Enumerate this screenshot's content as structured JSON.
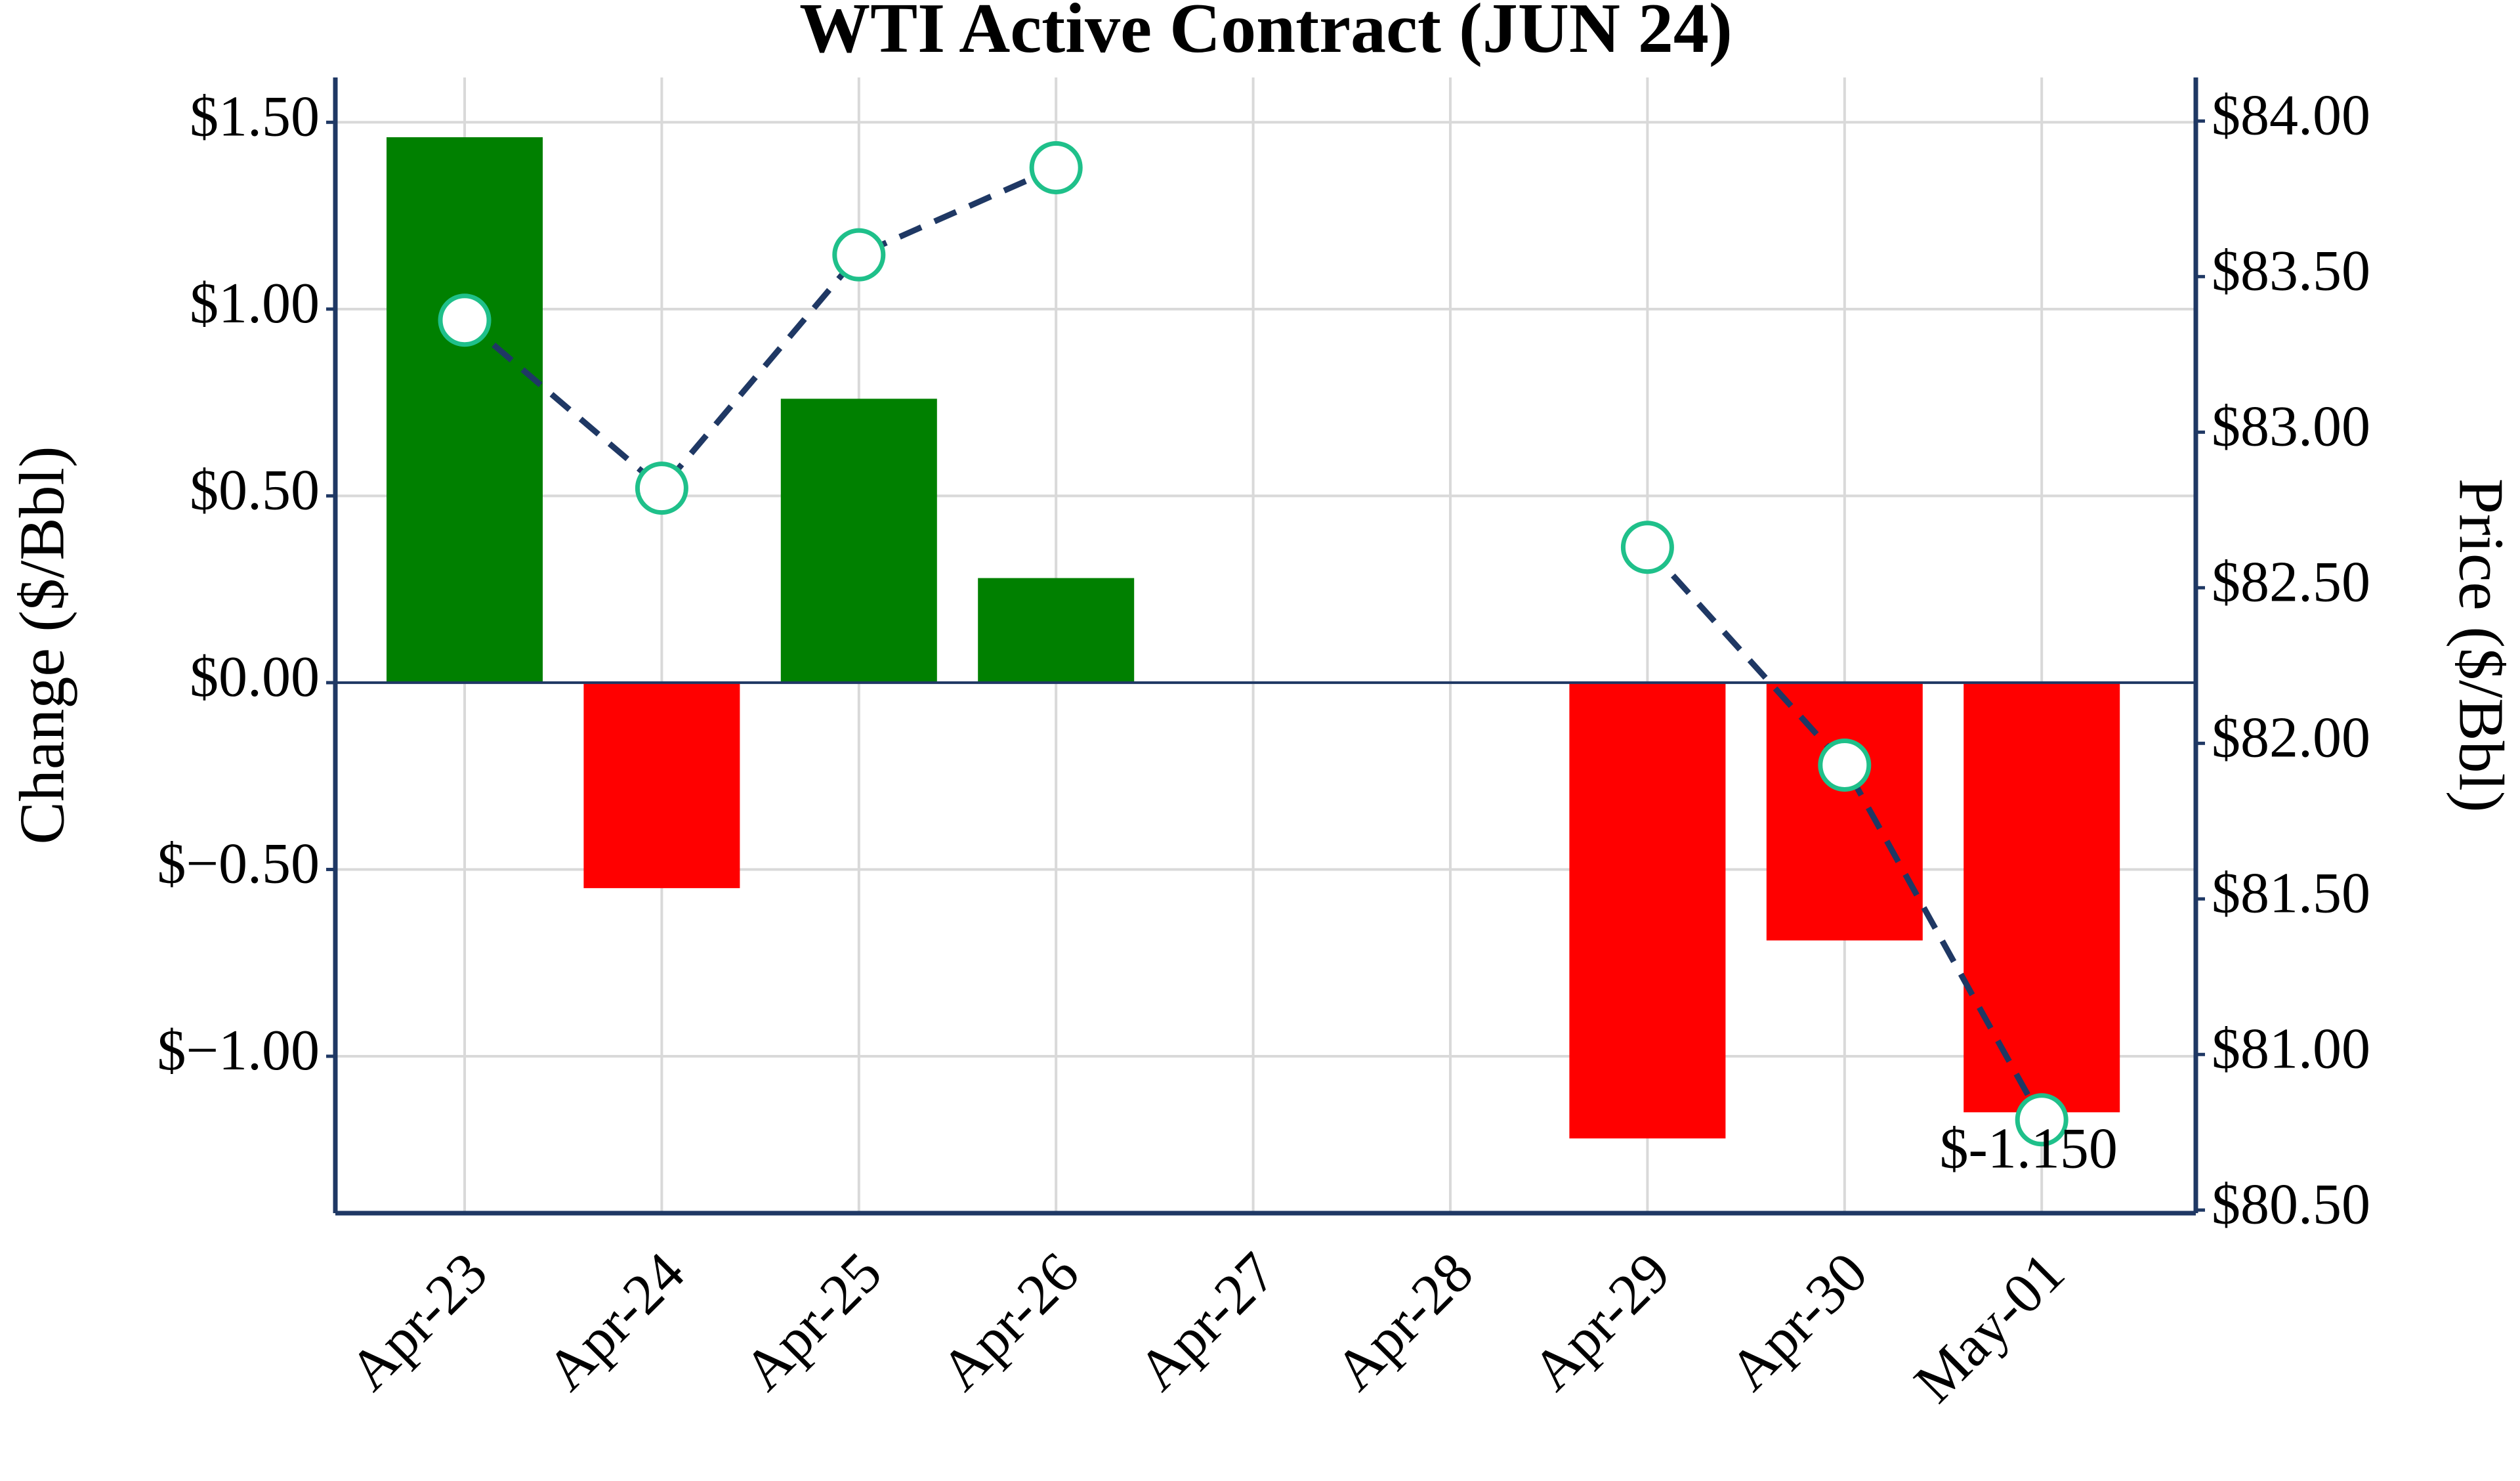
{
  "chart_data": {
    "type": "bar",
    "title": "WTI Active Contract (JUN 24)",
    "ylabel": "Change ($/Bbl)",
    "y2label": "Price ($/Bbl)",
    "categories": [
      "Apr-23",
      "Apr-24",
      "Apr-25",
      "Apr-26",
      "Apr-27",
      "Apr-28",
      "Apr-29",
      "Apr-30",
      "May-01"
    ],
    "series": [
      {
        "type": "bar",
        "values": [
          1.46,
          -0.55,
          0.76,
          0.28,
          null,
          null,
          -1.22,
          -0.69,
          -1.15
        ],
        "value_labels": [
          null,
          null,
          null,
          null,
          null,
          null,
          null,
          null,
          "$-1.150"
        ],
        "positive_color": "#008000",
        "negative_color": "#ff0000"
      },
      {
        "type": "line",
        "axis": "y2",
        "values": [
          83.36,
          82.82,
          83.57,
          83.85,
          null,
          null,
          82.63,
          81.93,
          80.79
        ],
        "color": "#1f3864",
        "dash": true,
        "marker_fill": "#ffffff",
        "marker_edge": "#1fc08a"
      }
    ],
    "ylim": [
      -1.42,
      1.62
    ],
    "yticks": [
      {
        "value": -1.0,
        "label": "$−1.00"
      },
      {
        "value": -0.5,
        "label": "$−0.50"
      },
      {
        "value": 0,
        "label": "$0.00"
      },
      {
        "value": 0.5,
        "label": "$0.50"
      },
      {
        "value": 1.0,
        "label": "$1.00"
      },
      {
        "value": 1.5,
        "label": "$1.50"
      }
    ],
    "y2lim": [
      80.49,
      84.14
    ],
    "y2ticks": [
      {
        "value": 80.5,
        "label": "$80.50"
      },
      {
        "value": 81,
        "label": "$81.00"
      },
      {
        "value": 81.5,
        "label": "$81.50"
      },
      {
        "value": 82,
        "label": "$82.00"
      },
      {
        "value": 82.5,
        "label": "$82.50"
      },
      {
        "value": 83,
        "label": "$83.00"
      },
      {
        "value": 83.5,
        "label": "$83.50"
      },
      {
        "value": 84,
        "label": "$84.00"
      }
    ],
    "grid": true,
    "axis_color": "#1f3864"
  }
}
